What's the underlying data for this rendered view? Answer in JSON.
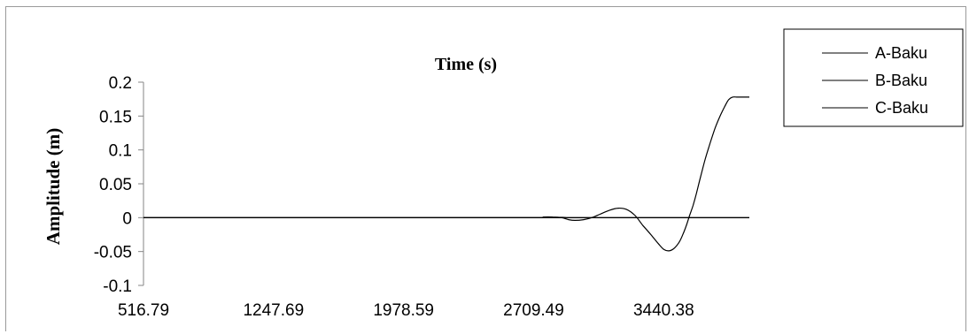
{
  "chart_data": {
    "type": "line",
    "title": "Time (s)",
    "xlabel": "",
    "ylabel": "Amplitude (m)",
    "x_tick_labels": [
      "516.79",
      "1247.69",
      "1978.59",
      "2709.49",
      "3440.38"
    ],
    "y_tick_labels": [
      "0.2",
      "0.15",
      "0.1",
      "0.05",
      "0",
      "-0.05",
      "-0.1"
    ],
    "ylim": [
      -0.1,
      0.2
    ],
    "xlim": [
      516.79,
      3921.6
    ],
    "grid": false,
    "legend_position": "top-right",
    "series": [
      {
        "name": "A-Baku",
        "color": "#000000",
        "x": [
          516.79,
          2709.49,
          2763.4,
          2817.2,
          2866.3,
          2906.2,
          2942.2,
          2990.1,
          3036.1,
          3082.0,
          3135.9,
          3186.1,
          3232.0,
          3280.0,
          3321.9,
          3367.9,
          3411.8,
          3441.7,
          3467.7,
          3495.6,
          3525.6,
          3549.5,
          3569.5,
          3585.5,
          3605.4,
          3623.4,
          3647.3,
          3673.3,
          3701.3,
          3729.2,
          3757.2,
          3785.1,
          3805.1,
          3827.0,
          3855.0,
          3882.9,
          3904.9,
          3921.6
        ],
        "values": [
          0,
          0,
          0.001,
          0.001,
          0,
          -0.003,
          -0.004,
          -0.003,
          0,
          0.005,
          0.011,
          0.014,
          0.012,
          0.003,
          -0.011,
          -0.025,
          -0.039,
          -0.047,
          -0.049,
          -0.046,
          -0.037,
          -0.024,
          -0.01,
          0.003,
          0.018,
          0.035,
          0.06,
          0.086,
          0.11,
          0.132,
          0.15,
          0.165,
          0.174,
          0.178,
          0.178,
          0.178,
          0.178,
          0.178
        ]
      },
      {
        "name": "B-Baku",
        "color": "#000000",
        "x": [],
        "values": []
      },
      {
        "name": "C-Baku",
        "color": "#000000",
        "x": [],
        "values": []
      }
    ]
  }
}
